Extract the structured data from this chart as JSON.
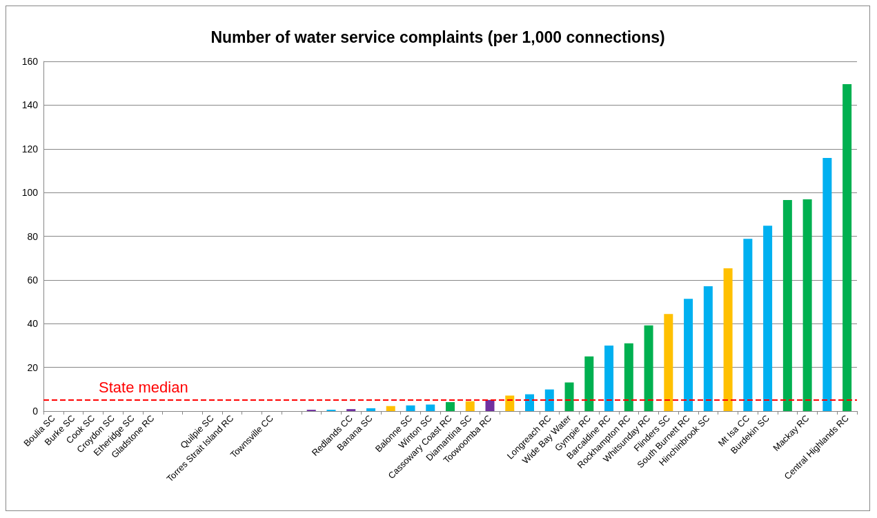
{
  "chart_data": {
    "type": "bar",
    "title": "Number of water service complaints (per 1,000 connections)",
    "categories": [
      "Boulia SC",
      "Burke SC",
      "Cook SC",
      "Croydon SC",
      "Etheridge SC",
      "Gladstone RC",
      null,
      null,
      "Quilpie SC",
      "Torres Strait Island RC",
      null,
      "Townsville CC",
      null,
      null,
      null,
      "Redlands CC",
      "Banana SC",
      null,
      "Balonne SC",
      "Winton SC",
      "Cassowary Coast RC",
      "Diamantina SC",
      "Toowoomba RC",
      null,
      null,
      "Longreach RC",
      "Wide Bay Water",
      "Gympie RC",
      "Barcaldine RC",
      "Rockhampton RC",
      "Whitsunday RC",
      "Flinders SC",
      "South Burnett RC",
      "Hinchinbrook SC",
      null,
      "Mt Isa CC",
      "Burdekin SC",
      null,
      "Mackay RC",
      null,
      "Central Highlands RC"
    ],
    "values": [
      0,
      0,
      0,
      0,
      0,
      0,
      0,
      0,
      0,
      0,
      0,
      0,
      0,
      0.6,
      0.6,
      0.9,
      1.3,
      2.3,
      2.6,
      3.0,
      4.1,
      4.5,
      5.1,
      7.1,
      7.7,
      9.9,
      13.1,
      25,
      30,
      31,
      39.2,
      44.4,
      51.4,
      57.1,
      65.3,
      78.8,
      84.8,
      96.6,
      96.9,
      115.8,
      149.6
    ],
    "colors": [
      "#00b0f0",
      "#00b0f0",
      "#00b0f0",
      "#00b0f0",
      "#00b0f0",
      "#00b0f0",
      "#00b0f0",
      "#00b0f0",
      "#00b0f0",
      "#00b0f0",
      "#00b0f0",
      "#00b0f0",
      "#00b0f0",
      "#7030a0",
      "#00b0f0",
      "#7030a0",
      "#00b0f0",
      "#ffc000",
      "#00b0f0",
      "#00b0f0",
      "#00b050",
      "#ffc000",
      "#7030a0",
      "#ffc000",
      "#00b0f0",
      "#00b0f0",
      "#00b050",
      "#00b050",
      "#00b0f0",
      "#00b050",
      "#00b050",
      "#ffc000",
      "#00b0f0",
      "#00b0f0",
      "#ffc000",
      "#00b0f0",
      "#00b0f0",
      "#00b050",
      "#00b050",
      "#00b0f0",
      "#00b050"
    ],
    "ylim": [
      0,
      160
    ],
    "yticks": [
      0,
      20,
      40,
      60,
      80,
      100,
      120,
      140,
      160
    ],
    "grid": "y",
    "ref_lines": [
      {
        "axis": "y",
        "value": 5.2,
        "label": "State median",
        "color": "#ff0000",
        "line_style": "dashed"
      }
    ]
  }
}
